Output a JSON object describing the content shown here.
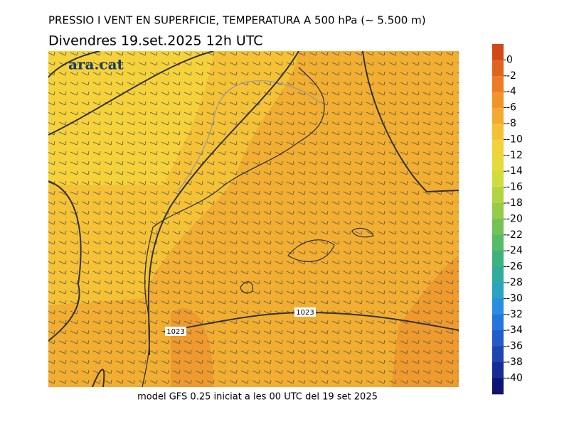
{
  "header": {
    "title": "PRESSIO I VENT EN SUPERFICIE, TEMPERATURA A 500 hPa (~ 5.500 m)",
    "subtitle": "Divendres  19.set.2025 12h UTC"
  },
  "logo": "ara.cat",
  "footer": "model GFS 0.25 iniciat a les 00 UTC del 19 set 2025",
  "isobar_labels": [
    "1023",
    "1023"
  ],
  "colorbar": {
    "ticks": [
      0,
      -2,
      -4,
      -6,
      -8,
      -10,
      -12,
      -14,
      -16,
      -18,
      -20,
      -22,
      -24,
      -26,
      -28,
      -30,
      -32,
      -34,
      -36,
      -38,
      -40
    ],
    "colors": [
      "#d04a18",
      "#e06420",
      "#ec7c24",
      "#f2942a",
      "#f4aa30",
      "#f6c036",
      "#f2d23a",
      "#e4da3c",
      "#cedc3e",
      "#b2d440",
      "#94cc48",
      "#74c254",
      "#56ba66",
      "#3eb27e",
      "#30ac9e",
      "#28a4c2",
      "#288ee0",
      "#2476dc",
      "#225cc8",
      "#1e44b0",
      "#162c94",
      "#0e1470"
    ]
  }
}
